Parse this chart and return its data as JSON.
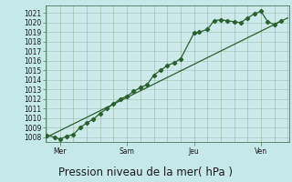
{
  "xlabel": "Pression niveau de la mer( hPa )",
  "bg_color": "#c5e8e8",
  "plot_bg_color": "#cdeaea",
  "grid_color_h": "#a0c8b8",
  "grid_color_v": "#a0b8a8",
  "line_color": "#2a6030",
  "ylim": [
    1007.5,
    1021.8
  ],
  "xlim": [
    -0.05,
    9.05
  ],
  "yticks": [
    1008,
    1009,
    1010,
    1011,
    1012,
    1013,
    1014,
    1015,
    1016,
    1017,
    1018,
    1019,
    1020,
    1021
  ],
  "xtick_labels": [
    "Mer",
    "Sam",
    "Jeu",
    "Ven"
  ],
  "xtick_positions": [
    0.5,
    3.0,
    5.5,
    8.0
  ],
  "vgrid_positions": [
    0.0,
    0.5,
    1.0,
    1.5,
    2.0,
    2.5,
    3.0,
    3.5,
    4.0,
    4.5,
    5.0,
    5.5,
    6.0,
    6.5,
    7.0,
    7.5,
    8.0,
    8.5,
    9.0
  ],
  "data_x": [
    0.0,
    0.3,
    0.5,
    0.75,
    1.0,
    1.25,
    1.5,
    1.75,
    2.0,
    2.25,
    2.5,
    2.75,
    3.0,
    3.25,
    3.5,
    3.75,
    4.0,
    4.25,
    4.5,
    4.75,
    5.0,
    5.5,
    5.7,
    6.0,
    6.25,
    6.5,
    6.75,
    7.0,
    7.25,
    7.5,
    7.75,
    8.0,
    8.25,
    8.5,
    8.75
  ],
  "data_y": [
    1008.2,
    1008.0,
    1007.8,
    1008.1,
    1008.3,
    1009.0,
    1009.5,
    1009.9,
    1010.5,
    1011.0,
    1011.5,
    1012.0,
    1012.3,
    1012.8,
    1013.2,
    1013.5,
    1014.5,
    1015.0,
    1015.5,
    1015.8,
    1016.2,
    1018.9,
    1019.0,
    1019.3,
    1020.2,
    1020.3,
    1020.2,
    1020.1,
    1020.0,
    1020.5,
    1020.9,
    1021.2,
    1020.1,
    1019.8,
    1020.2
  ],
  "trend_x": [
    0.0,
    9.0
  ],
  "trend_y": [
    1008.0,
    1020.5
  ],
  "marker": "D",
  "marker_size": 2.2,
  "line_width": 0.9,
  "tick_fontsize": 5.5,
  "xlabel_fontsize": 8.5
}
